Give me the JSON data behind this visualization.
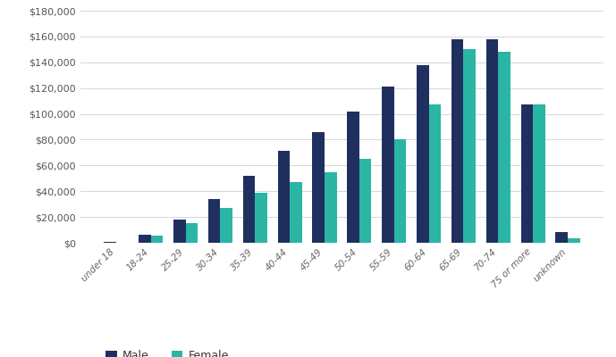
{
  "categories": [
    "under 18",
    "18-24",
    "25-29",
    "30-34",
    "35-39",
    "40-44",
    "45-49",
    "50-54",
    "55-59",
    "60-64",
    "65-69",
    "70-74",
    "75 or more",
    "unknown"
  ],
  "male": [
    1000,
    6500,
    18000,
    34000,
    52000,
    71000,
    86000,
    102000,
    121000,
    138000,
    158000,
    158000,
    107000,
    8000
  ],
  "female": [
    300,
    5500,
    15000,
    27000,
    39000,
    47000,
    55000,
    65000,
    80000,
    107000,
    150000,
    148000,
    107000,
    3500
  ],
  "male_color": "#1f3060",
  "female_color": "#2ab5a5",
  "background_color": "#ffffff",
  "grid_color": "#d0d0d0",
  "ylim": [
    0,
    180000
  ],
  "ytick_step": 20000,
  "legend_labels": [
    "Male",
    "Female"
  ],
  "bar_width": 0.35,
  "figsize": [
    6.89,
    4.0
  ],
  "dpi": 100
}
